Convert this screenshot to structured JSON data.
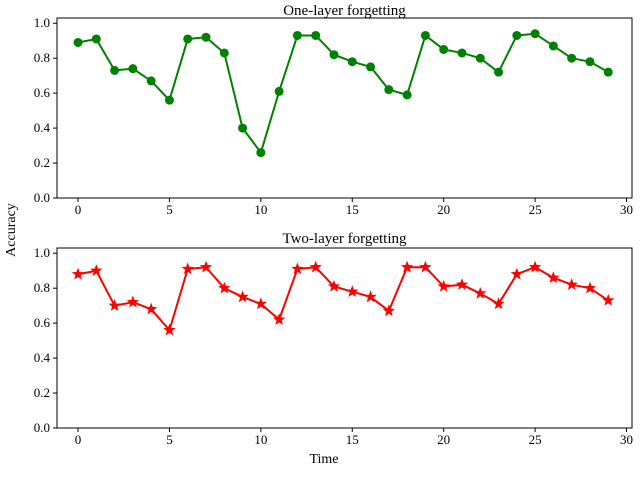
{
  "figure": {
    "ylabel": "Accuracy",
    "xlabel": "Time",
    "background_color": "#ffffff",
    "axis_color": "#000000"
  },
  "chart_data": [
    {
      "type": "line",
      "title": "One-layer forgetting",
      "xlabel": "",
      "ylabel": "",
      "x": [
        0,
        1,
        2,
        3,
        4,
        5,
        6,
        7,
        8,
        9,
        10,
        11,
        12,
        13,
        14,
        15,
        16,
        17,
        18,
        19,
        20,
        21,
        22,
        23,
        24,
        25,
        26,
        27,
        28,
        29
      ],
      "series": [
        {
          "name": "one-layer",
          "color": "#008000",
          "marker": "circle",
          "values": [
            0.89,
            0.91,
            0.73,
            0.74,
            0.67,
            0.56,
            0.91,
            0.92,
            0.83,
            0.4,
            0.26,
            0.61,
            0.93,
            0.93,
            0.82,
            0.78,
            0.75,
            0.62,
            0.59,
            0.93,
            0.85,
            0.83,
            0.8,
            0.72,
            0.93,
            0.94,
            0.87,
            0.8,
            0.78,
            0.72
          ]
        }
      ],
      "xticks": [
        0,
        5,
        10,
        15,
        20,
        25,
        30
      ],
      "yticks": [
        0.0,
        0.2,
        0.4,
        0.6,
        0.8,
        1.0
      ],
      "xlim": [
        -1.15,
        30.3
      ],
      "ylim": [
        0,
        1.03
      ],
      "grid": false,
      "legend": "none"
    },
    {
      "type": "line",
      "title": "Two-layer forgetting",
      "xlabel": "Time",
      "ylabel": "",
      "x": [
        0,
        1,
        2,
        3,
        4,
        5,
        6,
        7,
        8,
        9,
        10,
        11,
        12,
        13,
        14,
        15,
        16,
        17,
        18,
        19,
        20,
        21,
        22,
        23,
        24,
        25,
        26,
        27,
        28,
        29
      ],
      "series": [
        {
          "name": "two-layer",
          "color": "#ff0000",
          "marker": "star",
          "values": [
            0.88,
            0.9,
            0.7,
            0.72,
            0.68,
            0.56,
            0.91,
            0.92,
            0.8,
            0.75,
            0.71,
            0.62,
            0.91,
            0.92,
            0.81,
            0.78,
            0.75,
            0.67,
            0.92,
            0.92,
            0.81,
            0.82,
            0.77,
            0.71,
            0.88,
            0.92,
            0.86,
            0.82,
            0.8,
            0.73
          ]
        }
      ],
      "xticks": [
        0,
        5,
        10,
        15,
        20,
        25,
        30
      ],
      "yticks": [
        0.0,
        0.2,
        0.4,
        0.6,
        0.8,
        1.0
      ],
      "xlim": [
        -1.15,
        30.3
      ],
      "ylim": [
        0,
        1.03
      ],
      "grid": false,
      "legend": "none"
    }
  ]
}
